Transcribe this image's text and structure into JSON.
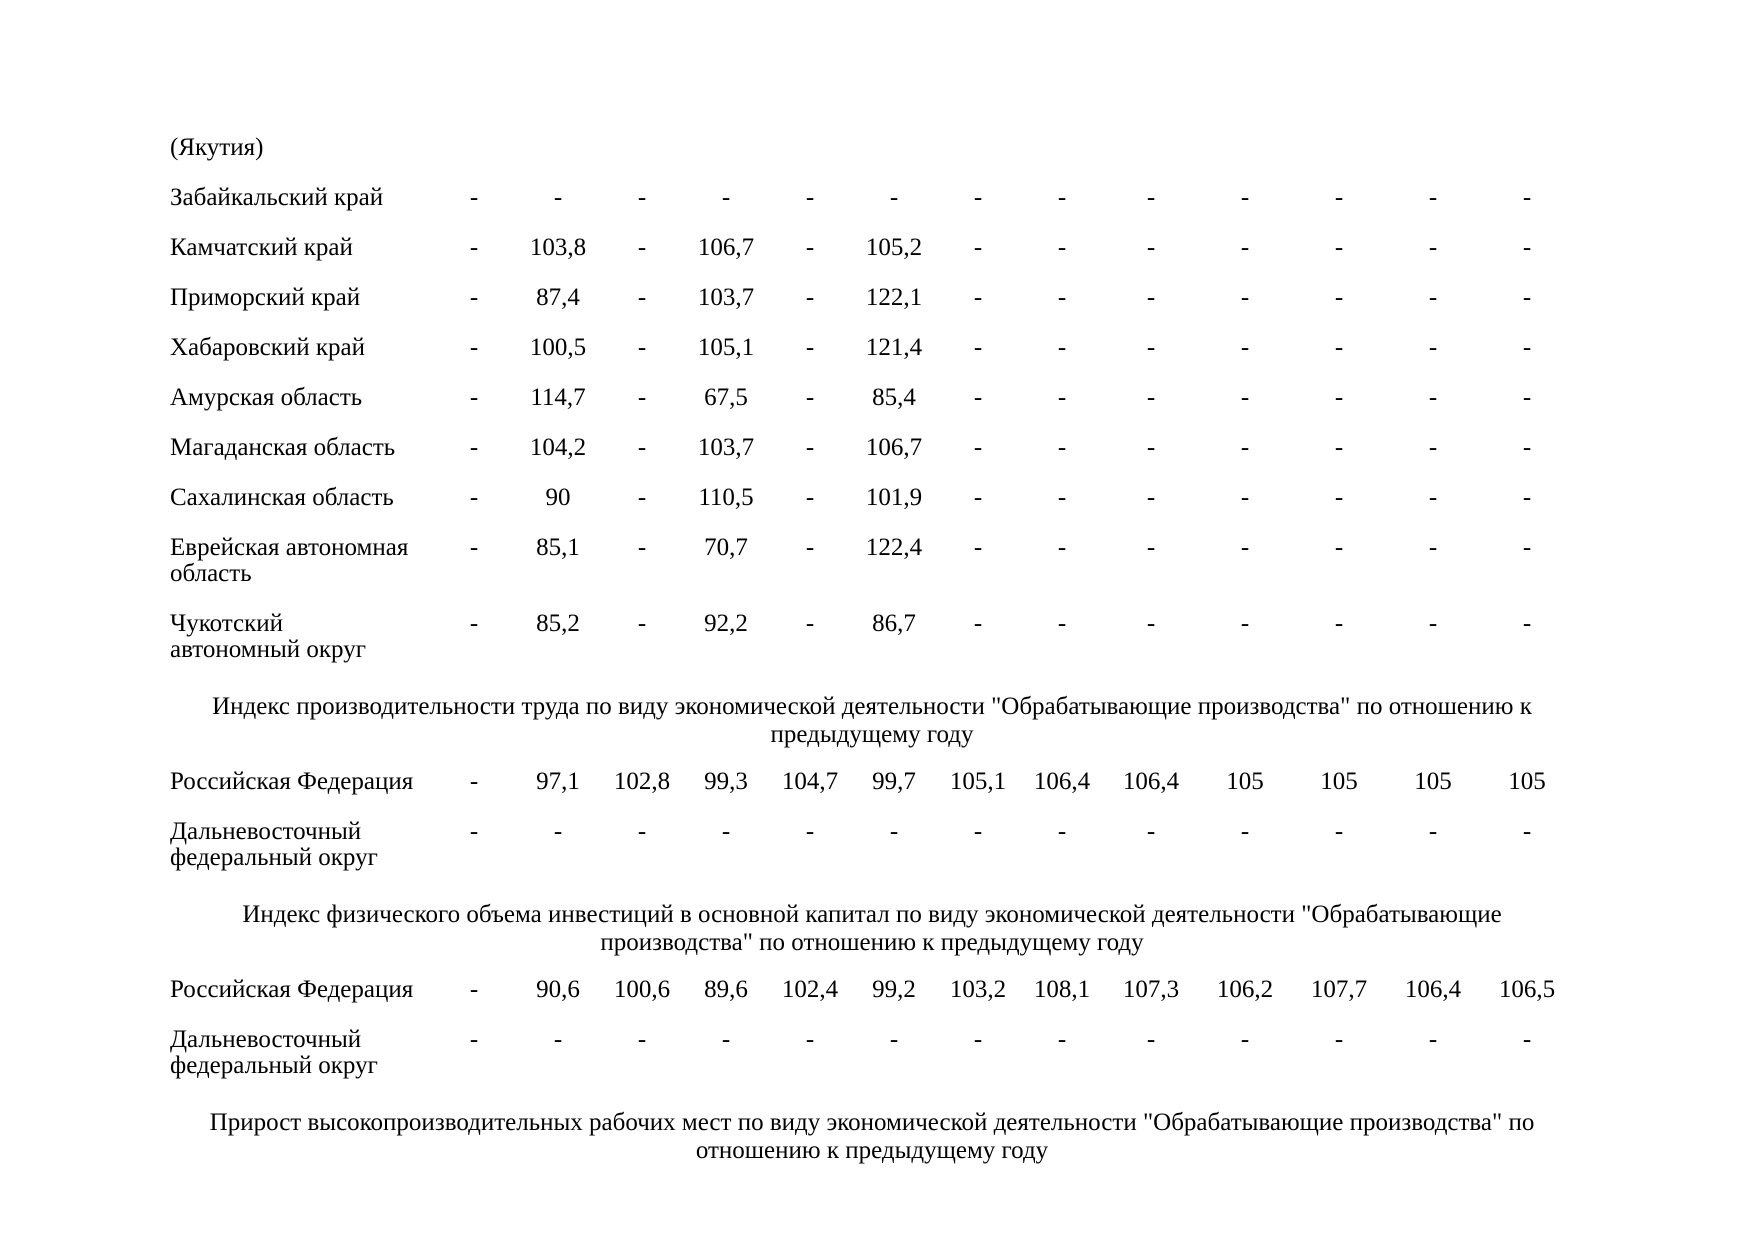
{
  "page": {
    "background_color": "#ffffff",
    "text_color": "#000000",
    "continuation_label": "(Якутия)"
  },
  "regions_table": {
    "rows": [
      {
        "label": "Забайкальский край",
        "values": [
          "-",
          "-",
          "-",
          "-",
          "-",
          "-",
          "-",
          "-",
          "-",
          "-",
          "-",
          "-",
          "-"
        ]
      },
      {
        "label": "Камчатский край",
        "values": [
          "-",
          "103,8",
          "-",
          "106,7",
          "-",
          "105,2",
          "-",
          "-",
          "-",
          "-",
          "-",
          "-",
          "-"
        ]
      },
      {
        "label": "Приморский край",
        "values": [
          "-",
          "87,4",
          "-",
          "103,7",
          "-",
          "122,1",
          "-",
          "-",
          "-",
          "-",
          "-",
          "-",
          "-"
        ]
      },
      {
        "label": "Хабаровский край",
        "values": [
          "-",
          "100,5",
          "-",
          "105,1",
          "-",
          "121,4",
          "-",
          "-",
          "-",
          "-",
          "-",
          "-",
          "-"
        ]
      },
      {
        "label": "Амурская область",
        "values": [
          "-",
          "114,7",
          "-",
          "67,5",
          "-",
          "85,4",
          "-",
          "-",
          "-",
          "-",
          "-",
          "-",
          "-"
        ]
      },
      {
        "label": "Магаданская область",
        "values": [
          "-",
          "104,2",
          "-",
          "103,7",
          "-",
          "106,7",
          "-",
          "-",
          "-",
          "-",
          "-",
          "-",
          "-"
        ]
      },
      {
        "label": "Сахалинская область",
        "values": [
          "-",
          "90",
          "-",
          "110,5",
          "-",
          "101,9",
          "-",
          "-",
          "-",
          "-",
          "-",
          "-",
          "-"
        ]
      },
      {
        "label": "Еврейская автономная\nобласть",
        "values": [
          "-",
          "85,1",
          "-",
          "70,7",
          "-",
          "122,4",
          "-",
          "-",
          "-",
          "-",
          "-",
          "-",
          "-"
        ]
      },
      {
        "label": "Чукотский\nавтономный округ",
        "values": [
          "-",
          "85,2",
          "-",
          "92,2",
          "-",
          "86,7",
          "-",
          "-",
          "-",
          "-",
          "-",
          "-",
          "-"
        ]
      }
    ]
  },
  "sections": [
    {
      "title": "Индекс производительности труда по виду экономической деятельности \"Обрабатывающие производства\" по отношению к\nпредыдущему году",
      "rows": [
        {
          "label": "Российская Федерация",
          "values": [
            "-",
            "97,1",
            "102,8",
            "99,3",
            "104,7",
            "99,7",
            "105,1",
            "106,4",
            "106,4",
            "105",
            "105",
            "105",
            "105"
          ]
        },
        {
          "label": "Дальневосточный\nфедеральный округ",
          "values": [
            "-",
            "-",
            "-",
            "-",
            "-",
            "-",
            "-",
            "-",
            "-",
            "-",
            "-",
            "-",
            "-"
          ]
        }
      ]
    },
    {
      "title": "Индекс физического объема инвестиций в основной капитал по виду экономической деятельности \"Обрабатывающие\nпроизводства\" по отношению к предыдущему году",
      "rows": [
        {
          "label": "Российская Федерация",
          "values": [
            "-",
            "90,6",
            "100,6",
            "89,6",
            "102,4",
            "99,2",
            "103,2",
            "108,1",
            "107,3",
            "106,2",
            "107,7",
            "106,4",
            "106,5"
          ]
        },
        {
          "label": "Дальневосточный\nфедеральный округ",
          "values": [
            "-",
            "-",
            "-",
            "-",
            "-",
            "-",
            "-",
            "-",
            "-",
            "-",
            "-",
            "-",
            "-"
          ]
        }
      ]
    },
    {
      "title": "Прирост высокопроизводительных рабочих мест по виду экономической деятельности \"Обрабатывающие производства\" по\nотношению к предыдущему году",
      "rows": []
    }
  ]
}
